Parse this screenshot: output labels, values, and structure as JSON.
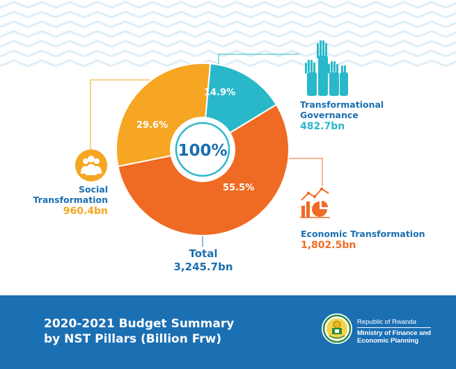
{
  "chart_data": {
    "type": "pie",
    "title": "2020-2021 Budget Summary by NST Pillars (Billion Frw)",
    "center_label": "100%",
    "total_label": "Total",
    "total_value": "3,245.7bn",
    "slices": [
      {
        "name": "Transformational Governance",
        "value": 482.7,
        "value_label": "482.7bn",
        "percent": 14.9,
        "percent_label": "14.9%",
        "color": "#29b8c9"
      },
      {
        "name": "Economic Transformation",
        "value": 1802.5,
        "value_label": "1,802.5bn",
        "percent": 55.5,
        "percent_label": "55.5%",
        "color": "#ef6b23"
      },
      {
        "name": "Social Transformation",
        "value": 960.4,
        "value_label": "960.4bn",
        "percent": 29.6,
        "percent_label": "29.6%",
        "color": "#f6a623"
      }
    ]
  },
  "labels": {
    "governance_line1": "Transformational",
    "governance_line2": "Governance",
    "governance_value": "482.7bn",
    "economic_line1": "Economic Transformation",
    "economic_value": "1,802.5bn",
    "social_line1": "Social",
    "social_line2": "Transformation",
    "social_value": "960.4bn",
    "total_label": "Total",
    "total_value": "3,245.7bn"
  },
  "footer": {
    "title_line1": "2020-2021 Budget Summary",
    "title_line2": "by NST Pillars (Billion Frw)",
    "org_line1": "Republic of Rwanda",
    "org_line2": "Ministry of Finance and",
    "org_line3": "Economic Planning"
  },
  "colors": {
    "governance": "#29b8c9",
    "economic": "#ef6b23",
    "social": "#f6a623",
    "text_blue": "#1a6fb0",
    "footer_blue": "#1b6fb3"
  },
  "icons": [
    "raised-hands-icon",
    "chart-growth-icon",
    "people-group-icon",
    "coat-of-arms-seal"
  ]
}
